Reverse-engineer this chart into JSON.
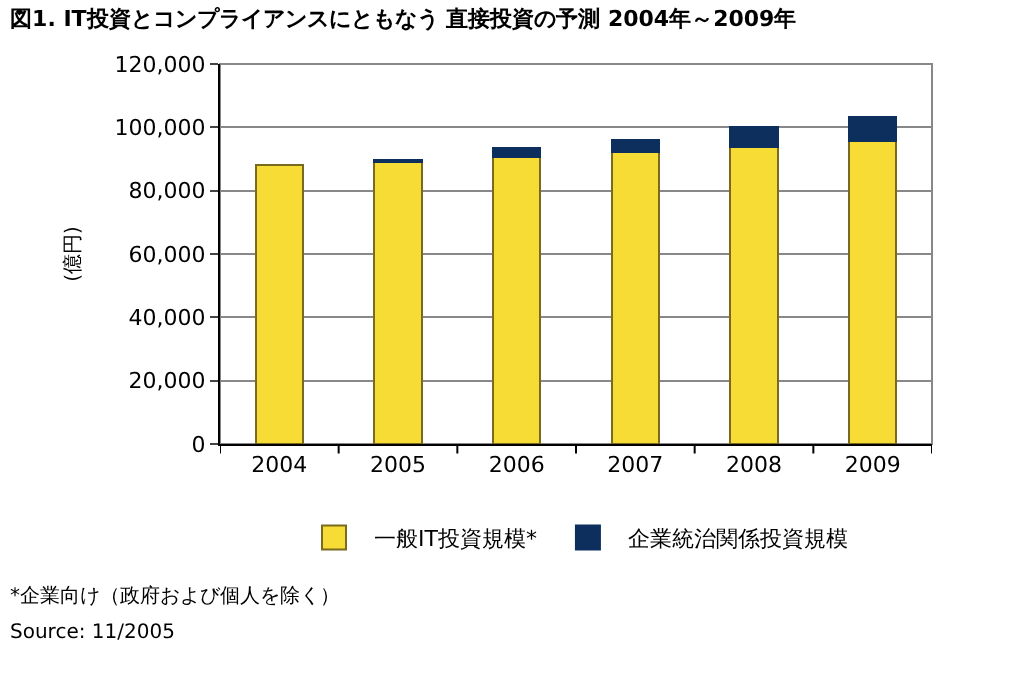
{
  "chart_data": {
    "type": "bar",
    "title": "図1. IT投資とコンプライアンスにともなう 直接投資の予測 2004年～2009年",
    "ylabel": "(億円)",
    "categories": [
      "2004",
      "2005",
      "2006",
      "2007",
      "2008",
      "2009"
    ],
    "stacked": true,
    "series": [
      {
        "name": "一般IT投資規模*",
        "color": "#f7dc35",
        "values": [
          88000,
          89200,
          90500,
          92300,
          93800,
          95600
        ]
      },
      {
        "name": "企業統治関係投資規模",
        "color": "#0d2f5e",
        "values": [
          null,
          600,
          2900,
          3700,
          6200,
          7700
        ]
      }
    ],
    "ylim": [
      0,
      120000
    ],
    "yticks": [
      {
        "value": 0,
        "label": "0"
      },
      {
        "value": 20000,
        "label": "20,000"
      },
      {
        "value": 40000,
        "label": "40,000"
      },
      {
        "value": 60000,
        "label": "60,000"
      },
      {
        "value": 80000,
        "label": "80,000"
      },
      {
        "value": 100000,
        "label": "100,000"
      },
      {
        "value": 120000,
        "label": "120,000"
      }
    ],
    "grid": "y",
    "legend": "bottom",
    "annotations": [
      "*企業向け（政府および個人を除く）",
      "Source: 11/2005"
    ]
  }
}
